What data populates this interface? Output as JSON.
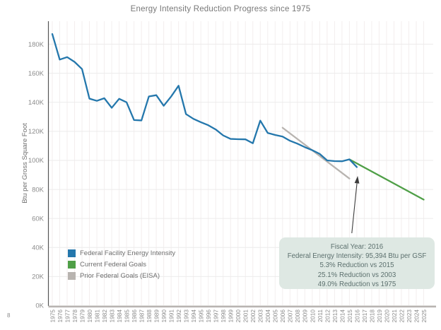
{
  "page": {
    "number": "8"
  },
  "header": {
    "title": "Energy Intensity Reduction Progress since 1975"
  },
  "colors": {
    "blue": "#2477ac",
    "green": "#4f9f47",
    "gray": "#b8b4b0",
    "tooltip_bg": "#dee8e3",
    "tooltip_text": "#5c706e",
    "axis_text": "#8b8b8b",
    "title_text": "#787878"
  },
  "legend": {
    "items": [
      {
        "label": "Federal Facility Energy Intensity",
        "color": "#2477ac"
      },
      {
        "label": "Current Federal Goals",
        "color": "#4f9f47"
      },
      {
        "label": "Prior Federal Goals (EISA)",
        "color": "#b8b4b0"
      }
    ]
  },
  "chart_data": {
    "type": "line",
    "title": "Energy Intensity Reduction Progress since 1975",
    "xlabel": "",
    "ylabel": "Btu per Gross Square Foot",
    "x_range": [
      1975,
      2025
    ],
    "ylim_kbtu": [
      0,
      190
    ],
    "grid": true,
    "legend_position": "inside-bottom-left",
    "ytick_values": [
      0,
      20,
      40,
      60,
      80,
      100,
      120,
      140,
      160,
      180
    ],
    "ytick_labels": [
      "0K",
      "20K",
      "40K",
      "60K",
      "80K",
      "100K",
      "120K",
      "140K",
      "160K",
      "180K"
    ],
    "x_years": [
      1975,
      1976,
      1977,
      1978,
      1979,
      1980,
      1981,
      1982,
      1983,
      1984,
      1985,
      1986,
      1987,
      1988,
      1989,
      1990,
      1991,
      1992,
      1993,
      1994,
      1995,
      1996,
      1997,
      1998,
      1999,
      2000,
      2001,
      2002,
      2003,
      2004,
      2005,
      2006,
      2007,
      2008,
      2009,
      2010,
      2011,
      2012,
      2013,
      2014,
      2015,
      2016,
      2017,
      2018,
      2019,
      2020,
      2021,
      2022,
      2023,
      2024,
      2025
    ],
    "series": [
      {
        "name": "Federal Facility Energy Intensity",
        "color": "#2477ac",
        "x": [
          1975,
          1976,
          1977,
          1978,
          1979,
          1980,
          1981,
          1982,
          1983,
          1984,
          1985,
          1986,
          1987,
          1988,
          1989,
          1990,
          1991,
          1992,
          1993,
          1994,
          1995,
          1996,
          1997,
          1998,
          1999,
          2000,
          2001,
          2002,
          2003,
          2004,
          2005,
          2006,
          2007,
          2008,
          2009,
          2010,
          2011,
          2012,
          2013,
          2014,
          2015,
          2016
        ],
        "values_kbtu": [
          187.0,
          169.4,
          171.1,
          167.8,
          162.9,
          142.5,
          141.0,
          142.8,
          136.2,
          142.4,
          140.0,
          127.8,
          127.5,
          144.0,
          144.9,
          137.6,
          144.0,
          151.4,
          131.9,
          128.6,
          126.3,
          124.2,
          121.3,
          117.2,
          114.8,
          114.6,
          114.5,
          111.8,
          127.4,
          118.9,
          117.5,
          116.4,
          113.5,
          111.5,
          109.1,
          107.0,
          104.5,
          100.0,
          99.5,
          99.4,
          100.7,
          95.4
        ]
      },
      {
        "name": "Current Federal Goals",
        "color": "#4f9f47",
        "x": [
          2015,
          2025
        ],
        "values_kbtu": [
          100.7,
          73.0
        ]
      },
      {
        "name": "Prior Federal Goals (EISA)",
        "color": "#b8b4b0",
        "x": [
          2006,
          2015
        ],
        "values_kbtu": [
          122.5,
          87.5
        ]
      }
    ],
    "annotation": {
      "arrow_to_year": 2016,
      "arrow_to_value_kbtu": 95.394,
      "lines": [
        "Fiscal Year: 2016",
        "Federal Energy Intensity: 95,394 Btu per GSF",
        "5.3% Reduction vs 2015",
        "25.1% Reduction vs 2003",
        "49.0% Reduction vs 1975"
      ]
    }
  }
}
